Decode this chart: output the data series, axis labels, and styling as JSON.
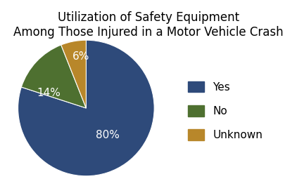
{
  "title": "Utilization of Safety Equipment\nAmong Those Injured in a Motor Vehicle Crash",
  "slices": [
    80,
    14,
    6
  ],
  "labels": [
    "Yes",
    "No",
    "Unknown"
  ],
  "colors": [
    "#2E4A7A",
    "#4E7030",
    "#B8872A"
  ],
  "pct_labels": [
    "80%",
    "14%",
    "6%"
  ],
  "startangle": 90,
  "title_fontsize": 12,
  "pct_fontsize": 11,
  "legend_fontsize": 11,
  "background_color": "#ffffff",
  "text_color": "#000000",
  "pct_colors": [
    "white",
    "white",
    "white"
  ]
}
